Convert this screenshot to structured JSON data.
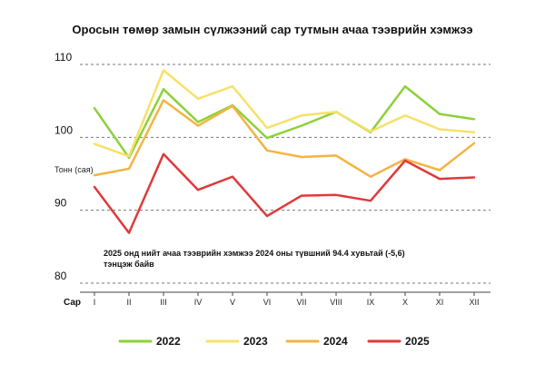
{
  "chart_data": {
    "type": "line",
    "title": "Оросын төмөр замын сүлжээний сар тутмын ачаа тээврийн хэмжээ",
    "ylabel": "Тонн (сая)",
    "xlabel": "Сар",
    "categories": [
      "I",
      "II",
      "III",
      "IV",
      "V",
      "VI",
      "VII",
      "VIII",
      "IX",
      "X",
      "XI",
      "XII"
    ],
    "ylim": [
      80,
      110
    ],
    "yticks": [
      80,
      90,
      100,
      110
    ],
    "grid": true,
    "annotation": "2025 онд нийт ачаа тээврийн хэмжээ 2024 оны түвшний 94.4 хувьтай (-5,6) тэнцэж байв",
    "legend_position": "bottom",
    "series": [
      {
        "name": "2022",
        "color": "#8cd13a",
        "values": [
          104.0,
          97.2,
          106.6,
          102.1,
          104.4,
          99.9,
          101.6,
          103.5,
          100.7,
          107.0,
          103.2,
          102.5
        ]
      },
      {
        "name": "2023",
        "color": "#f7e168",
        "values": [
          99.1,
          97.4,
          109.2,
          105.3,
          107.0,
          101.3,
          103.0,
          103.5,
          100.8,
          103.0,
          101.1,
          100.7
        ]
      },
      {
        "name": "2024",
        "color": "#f3b443",
        "values": [
          94.8,
          95.7,
          105.1,
          101.6,
          104.3,
          98.2,
          97.3,
          97.5,
          94.6,
          97.0,
          95.5,
          99.2
        ]
      },
      {
        "name": "2025",
        "color": "#e0393a",
        "values": [
          93.2,
          86.9,
          97.7,
          92.8,
          94.6,
          89.2,
          92.0,
          92.1,
          91.3,
          96.8,
          94.3,
          94.5
        ]
      }
    ]
  }
}
